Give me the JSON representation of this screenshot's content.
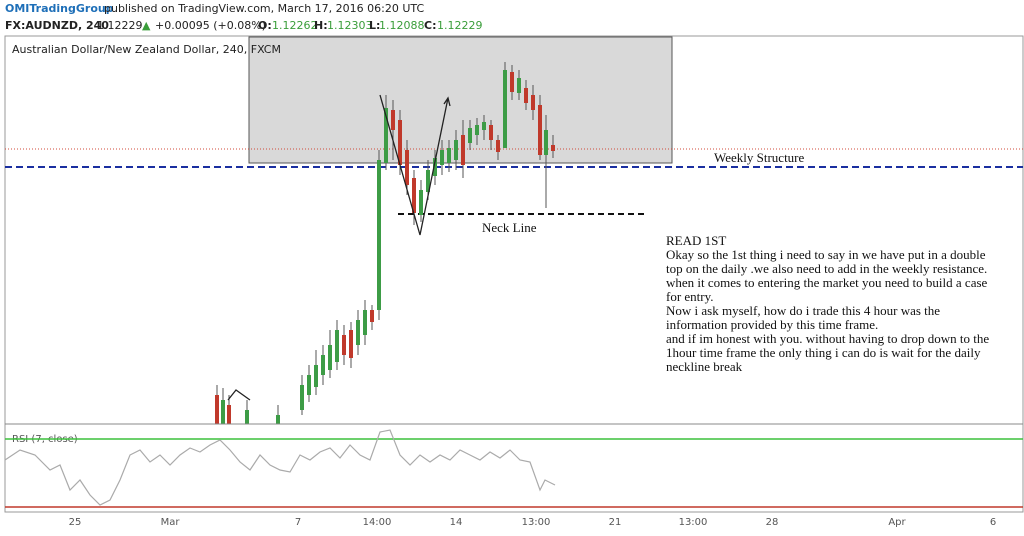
{
  "header": {
    "author": "OMITradingGroup",
    "published": "published on TradingView.com, March 17, 2016 06:20 UTC",
    "symbol": "FX:AUDNZD, 240",
    "price": "1.12229",
    "arrow": "▲",
    "change": "+0.00095 (+0.08%)",
    "open_label": "O:",
    "open": "1.12262",
    "high_label": "H:",
    "high": "1.12303",
    "low_label": "L:",
    "low": "1.12088",
    "close_label": "C:",
    "close": "1.12229"
  },
  "chart": {
    "pane_title": "Australian Dollar/New Zealand Dollar, 240, FXCM",
    "weekly_label": "Weekly Structure",
    "neck_label": "Neck Line",
    "rsi_label": "RSI (7, close)",
    "x_labels": [
      "25",
      "Mar",
      "7",
      "14:00",
      "14",
      "13:00",
      "21",
      "13:00",
      "28",
      "Apr",
      "6"
    ]
  },
  "note": {
    "title": "READ 1ST",
    "lines": [
      "Okay so the 1st thing i need to say in we have put in a double",
      "top on the daily .we also need to add in the weekly resistance.",
      "when it comes to entering the market you need to build a case",
      "for entry.",
      "Now i ask myself, how do i trade this 4 hour was the",
      "information provided by this time frame.",
      "and if im honest with you. without having to drop down to the",
      "1hour time frame the only thing i can do is wait for the daily",
      "neckline break"
    ]
  }
}
